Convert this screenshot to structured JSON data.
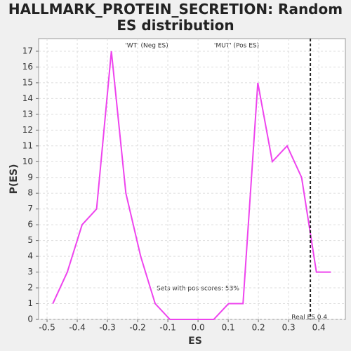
{
  "chart_data": {
    "type": "line",
    "title": "HALLMARK_PROTEIN_SECRETION: Random ES distribution",
    "xlabel": "ES",
    "ylabel": "P(ES)",
    "legend": [
      "'WT' (Neg ES)",
      "'MUT' (Pos ES)"
    ],
    "legend_colors": [
      "#3333cc",
      "#dd3333"
    ],
    "annotation": "Sets with pos scores: 53%",
    "real_es": {
      "value": 0.372,
      "label": "Real ES 0.4"
    },
    "x": [
      -0.481,
      -0.433,
      -0.384,
      -0.336,
      -0.287,
      -0.239,
      -0.19,
      -0.142,
      -0.093,
      -0.045,
      0.004,
      0.052,
      0.101,
      0.149,
      0.198,
      0.246,
      0.295,
      0.343,
      0.392,
      0.44
    ],
    "series": [
      {
        "color": "#ee44ee",
        "values": [
          1,
          3,
          6,
          7,
          17,
          8,
          4,
          1,
          0,
          0,
          0,
          0,
          1,
          1,
          15,
          10,
          11,
          9,
          3,
          3
        ]
      }
    ],
    "xlim": [
      -0.528,
      0.488
    ],
    "ylim": [
      0,
      17.8
    ],
    "xticks": [
      -0.5,
      -0.4,
      -0.3,
      -0.2,
      -0.1,
      {
        "value": 0,
        "label": "0.0"
      },
      0.1,
      0.2,
      0.3,
      0.4
    ],
    "yticks": [
      0,
      1,
      2,
      3,
      4,
      5,
      6,
      7,
      8,
      9,
      10,
      11,
      12,
      13,
      14,
      15,
      16,
      17
    ],
    "grid": true
  }
}
